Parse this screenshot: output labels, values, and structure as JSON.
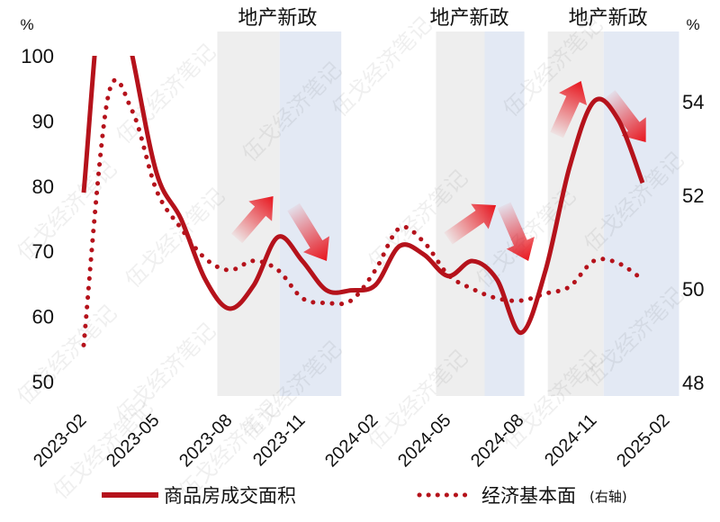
{
  "chart_data": {
    "type": "line",
    "x": [
      "2023-02",
      "2023-03",
      "2023-04",
      "2023-05",
      "2023-06",
      "2023-07",
      "2023-08",
      "2023-09",
      "2023-10",
      "2023-11",
      "2023-12",
      "2024-01",
      "2024-02",
      "2024-03",
      "2024-04",
      "2024-05",
      "2024-06",
      "2024-07",
      "2024-08",
      "2024-09",
      "2024-10",
      "2024-11",
      "2024-12",
      "2025-01"
    ],
    "x_ticks": [
      "2023-02",
      "2023-05",
      "2023-08",
      "2023-11",
      "2024-02",
      "2024-05",
      "2024-08",
      "2024-11",
      "2025-02"
    ],
    "series": [
      {
        "name": "商品房成交面积",
        "axis": "left",
        "style": "solid",
        "color": "#b5121b",
        "values": [
          79,
          118,
          100,
          82,
          75,
          65.7,
          61.2,
          64.8,
          72.2,
          68.5,
          64,
          64,
          64.8,
          70.8,
          69.5,
          66.2,
          68.5,
          65.7,
          57.5,
          67,
          83,
          93,
          90.2,
          80.5
        ]
      },
      {
        "name": "经济基本面(右轴)",
        "axis": "right",
        "style": "dotted",
        "color": "#b5121b",
        "values": [
          48.8,
          54.1,
          53.8,
          52.1,
          51.3,
          50.65,
          50.4,
          50.6,
          50.4,
          49.8,
          49.7,
          49.75,
          50.4,
          51.3,
          51.0,
          50.3,
          50.0,
          49.8,
          49.75,
          49.9,
          50.05,
          50.6,
          50.55,
          50.2
        ]
      }
    ],
    "left_axis": {
      "unit": "%",
      "range": [
        50,
        100
      ],
      "ticks": [
        50,
        60,
        70,
        80,
        90,
        100
      ]
    },
    "right_axis": {
      "unit": "%",
      "range": [
        48,
        54
      ],
      "ticks": [
        48,
        50,
        52,
        54
      ]
    },
    "shaded_periods": [
      {
        "label": "地产新政",
        "gray": [
          "2023-07-16",
          "2023-10-03"
        ],
        "blue": [
          "2023-10-03",
          "2023-12-19"
        ]
      },
      {
        "label": "地产新政",
        "gray": [
          "2024-04-16",
          "2024-06-16"
        ],
        "blue": [
          "2024-06-16",
          "2024-08-05"
        ]
      },
      {
        "label": "地产新政",
        "gray": [
          "2024-09-04",
          "2024-11-13"
        ],
        "blue": [
          "2024-11-13",
          "2025-02-16"
        ]
      }
    ],
    "arrows": [
      {
        "direction": "up",
        "from": "2023-08-10",
        "to": "2023-09-25"
      },
      {
        "direction": "down",
        "from": "2023-10-20",
        "to": "2023-12-01"
      },
      {
        "direction": "up",
        "from": "2024-05-01",
        "to": "2024-06-30"
      },
      {
        "direction": "down",
        "from": "2024-07-10",
        "to": "2024-08-10"
      },
      {
        "direction": "up",
        "from": "2024-09-15",
        "to": "2024-10-15"
      },
      {
        "direction": "down",
        "from": "2024-11-20",
        "to": "2025-01-05"
      }
    ],
    "legend": {
      "placement": "bottom",
      "entries": [
        "商品房成交面积",
        "经济基本面"
      ],
      "suffix": "(右轴)"
    },
    "colors": {
      "line": "#b5121b",
      "gray_band": "#eeeeee",
      "blue_band": "#e3e9f4",
      "arrow": "#e8141c"
    },
    "grid": false,
    "watermark": "伍戈经济笔记"
  }
}
